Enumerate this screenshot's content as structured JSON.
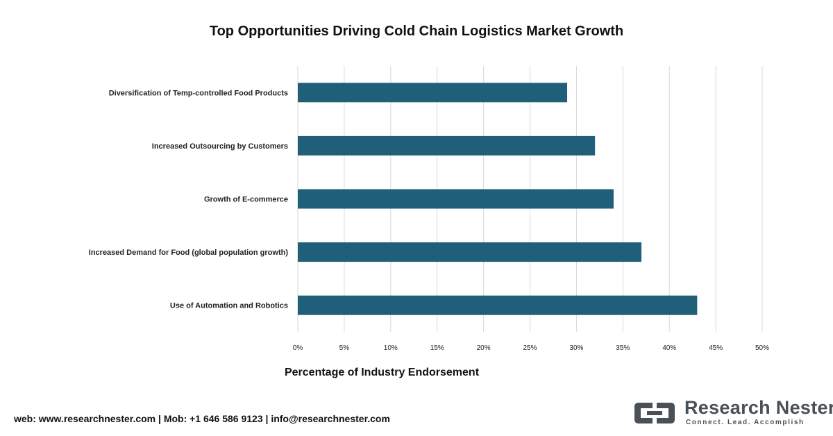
{
  "chart_data": {
    "type": "bar",
    "orientation": "horizontal",
    "title": "Top Opportunities Driving Cold Chain Logistics Market Growth",
    "xlabel": "Percentage of Industry Endorsement",
    "ylabel": "",
    "categories": [
      "Diversification of Temp-controlled Food Products",
      "Increased Outsourcing by Customers",
      "Growth of E-commerce",
      "Increased Demand for Food (global population growth)",
      "Use of Automation and Robotics"
    ],
    "values": [
      29,
      32,
      34,
      37,
      43
    ],
    "xlim": [
      0,
      50
    ],
    "xticks": [
      "0%",
      "5%",
      "10%",
      "15%",
      "20%",
      "25%",
      "30%",
      "35%",
      "40%",
      "45%",
      "50%"
    ],
    "grid": true,
    "bar_color": "#1f5f7a"
  },
  "footer": {
    "contact": "web: www.researchnester.com | Mob: +1 646 586 9123 | info@researchnester.com"
  },
  "brand": {
    "name": "Research Nester",
    "tagline": "Connect. Lead. Accomplish",
    "logo_icon": "research-nester-logo-icon",
    "color": "#4a5058"
  }
}
